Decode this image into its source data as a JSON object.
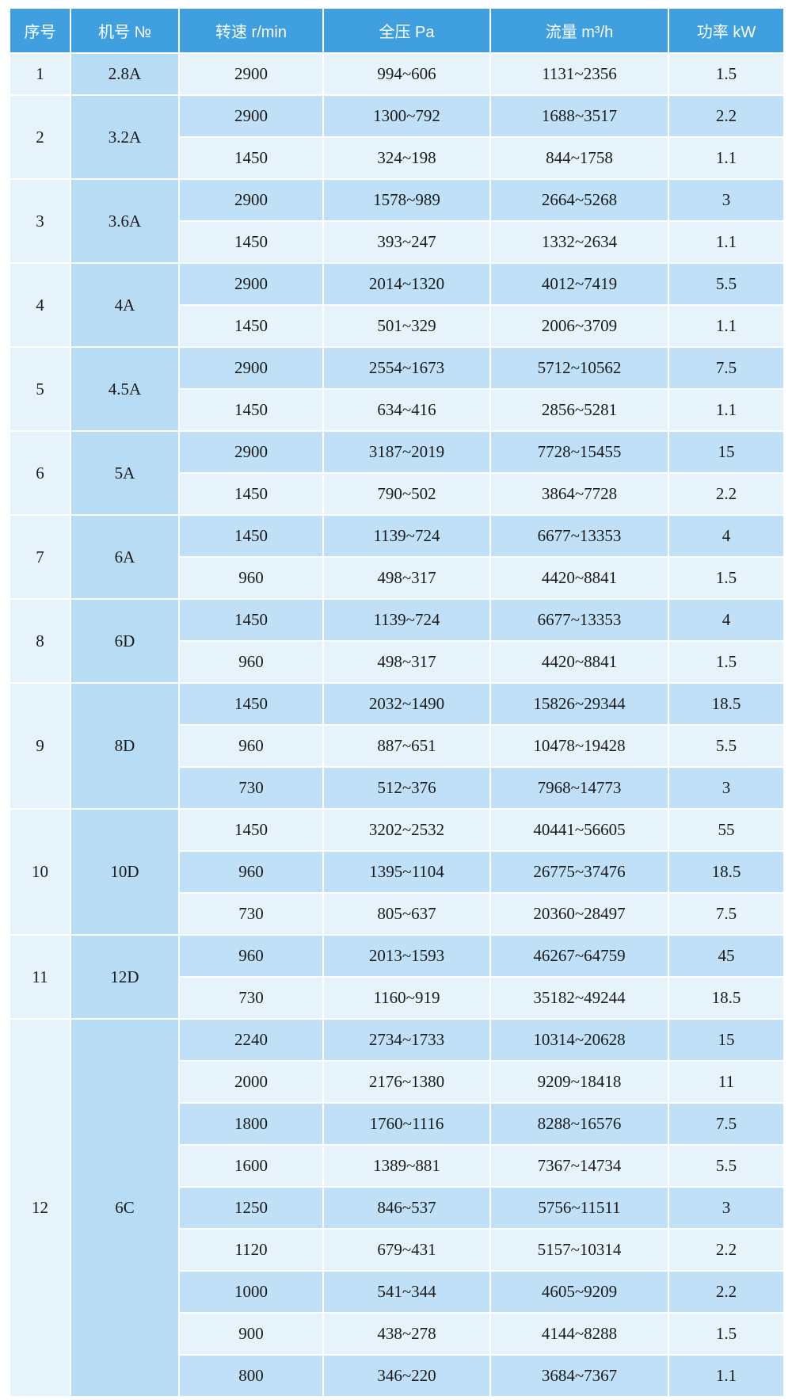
{
  "table": {
    "header": [
      "序号",
      "机号 №",
      "转速 r/min",
      "全压 Pa",
      "流量 m³/h",
      "功率 kW"
    ],
    "groups": [
      {
        "no": 1,
        "model": "2.8A",
        "rows": [
          [
            2900,
            "994~606",
            "1131~2356",
            1.5
          ]
        ]
      },
      {
        "no": 2,
        "model": "3.2A",
        "rows": [
          [
            2900,
            "1300~792",
            "1688~3517",
            2.2
          ],
          [
            1450,
            "324~198",
            "844~1758",
            1.1
          ]
        ]
      },
      {
        "no": 3,
        "model": "3.6A",
        "rows": [
          [
            2900,
            "1578~989",
            "2664~5268",
            3
          ],
          [
            1450,
            "393~247",
            "1332~2634",
            1.1
          ]
        ]
      },
      {
        "no": 4,
        "model": "4A",
        "rows": [
          [
            2900,
            "2014~1320",
            "4012~7419",
            5.5
          ],
          [
            1450,
            "501~329",
            "2006~3709",
            1.1
          ]
        ]
      },
      {
        "no": 5,
        "model": "4.5A",
        "rows": [
          [
            2900,
            "2554~1673",
            "5712~10562",
            7.5
          ],
          [
            1450,
            "634~416",
            "2856~5281",
            1.1
          ]
        ]
      },
      {
        "no": 6,
        "model": "5A",
        "rows": [
          [
            2900,
            "3187~2019",
            "7728~15455",
            15
          ],
          [
            1450,
            "790~502",
            "3864~7728",
            2.2
          ]
        ]
      },
      {
        "no": 7,
        "model": "6A",
        "rows": [
          [
            1450,
            "1139~724",
            "6677~13353",
            4
          ],
          [
            960,
            "498~317",
            "4420~8841",
            1.5
          ]
        ]
      },
      {
        "no": 8,
        "model": "6D",
        "rows": [
          [
            1450,
            "1139~724",
            "6677~13353",
            4
          ],
          [
            960,
            "498~317",
            "4420~8841",
            1.5
          ]
        ]
      },
      {
        "no": 9,
        "model": "8D",
        "rows": [
          [
            1450,
            "2032~1490",
            "15826~29344",
            18.5
          ],
          [
            960,
            "887~651",
            "10478~19428",
            5.5
          ],
          [
            730,
            "512~376",
            "7968~14773",
            3
          ]
        ]
      },
      {
        "no": 10,
        "model": "10D",
        "rows": [
          [
            1450,
            "3202~2532",
            "40441~56605",
            55
          ],
          [
            960,
            "1395~1104",
            "26775~37476",
            18.5
          ],
          [
            730,
            "805~637",
            "20360~28497",
            7.5
          ]
        ]
      },
      {
        "no": 11,
        "model": "12D",
        "rows": [
          [
            960,
            "2013~1593",
            "46267~64759",
            45
          ],
          [
            730,
            "1160~919",
            "35182~49244",
            18.5
          ]
        ]
      },
      {
        "no": 12,
        "model": "6C",
        "rows": [
          [
            2240,
            "2734~1733",
            "10314~20628",
            15
          ],
          [
            2000,
            "2176~1380",
            "9209~18418",
            11
          ],
          [
            1800,
            "1760~1116",
            "8288~16576",
            7.5
          ],
          [
            1600,
            "1389~881",
            "7367~14734",
            5.5
          ],
          [
            1250,
            "846~537",
            "5756~11511",
            3
          ],
          [
            1120,
            "679~431",
            "5157~10314",
            2.2
          ],
          [
            1000,
            "541~344",
            "4605~9209",
            2.2
          ],
          [
            900,
            "438~278",
            "4144~8288",
            1.5
          ],
          [
            800,
            "346~220",
            "3684~7367",
            1.1
          ]
        ]
      }
    ]
  }
}
